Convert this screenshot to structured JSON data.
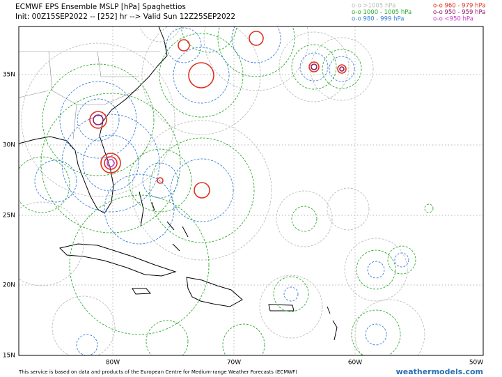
{
  "header": {
    "title": "ECMWF EPS Ensemble MSLP [hPa] Spaghettios",
    "subtitle": "Init: 00Z15SEP2022 -- [252] hr --> Valid Sun 12Z25SEP2022"
  },
  "legend": {
    "items": [
      {
        "label": "o-o >1005 hPa",
        "color": "#bdbdbd"
      },
      {
        "label": "o-o 1000 - 1005 hPa",
        "color": "#2eaa2e"
      },
      {
        "label": "o-o 980 - 999 hPa",
        "color": "#3a7fdc"
      },
      {
        "label": "o-o 960 - 979 hPa",
        "color": "#e0301e"
      },
      {
        "label": "o-o 950 - 959 hPa",
        "color": "#8b1a6b"
      },
      {
        "label": "o-o <950 hPa",
        "color": "#d13bd1"
      }
    ]
  },
  "map": {
    "lat_labels": [
      "35N",
      "30N",
      "25N",
      "20N",
      "15N"
    ],
    "lon_labels": [
      "80W",
      "70W",
      "60W",
      "50W"
    ]
  },
  "footer": {
    "credit": "This service is based on data and products of the European Centre for Medium-range Weather Forecasts (ECMWF)",
    "site": "weathermodels.com"
  }
}
